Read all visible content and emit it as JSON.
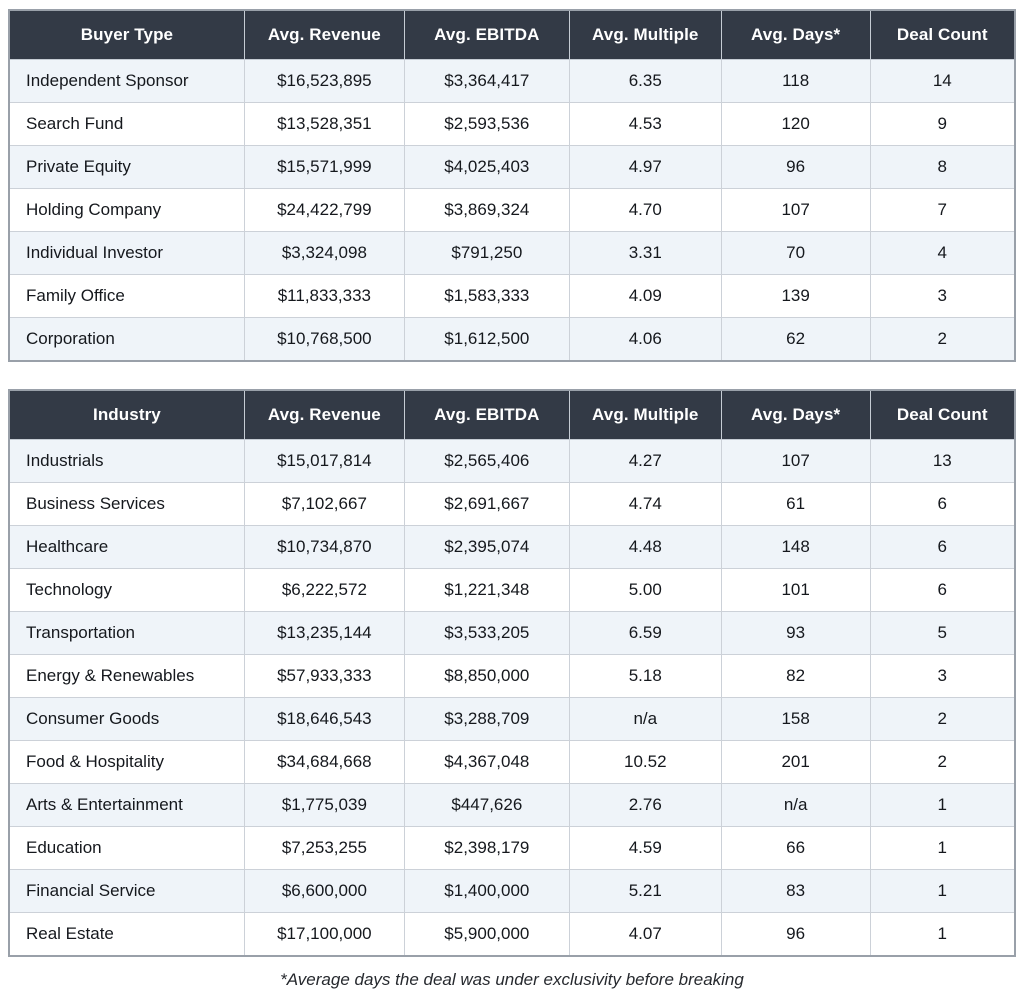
{
  "tables": [
    {
      "name": "buyer-type",
      "columns": [
        "Buyer Type",
        "Avg. Revenue",
        "Avg. EBITDA",
        "Avg. Multiple",
        "Avg. Days*",
        "Deal Count"
      ],
      "rows": [
        [
          "Independent Sponsor",
          "$16,523,895",
          "$3,364,417",
          "6.35",
          "118",
          "14"
        ],
        [
          "Search Fund",
          "$13,528,351",
          "$2,593,536",
          "4.53",
          "120",
          "9"
        ],
        [
          "Private Equity",
          "$15,571,999",
          "$4,025,403",
          "4.97",
          "96",
          "8"
        ],
        [
          "Holding Company",
          "$24,422,799",
          "$3,869,324",
          "4.70",
          "107",
          "7"
        ],
        [
          "Individual Investor",
          "$3,324,098",
          "$791,250",
          "3.31",
          "70",
          "4"
        ],
        [
          "Family Office",
          "$11,833,333",
          "$1,583,333",
          "4.09",
          "139",
          "3"
        ],
        [
          "Corporation",
          "$10,768,500",
          "$1,612,500",
          "4.06",
          "62",
          "2"
        ]
      ]
    },
    {
      "name": "industry",
      "columns": [
        "Industry",
        "Avg. Revenue",
        "Avg. EBITDA",
        "Avg. Multiple",
        "Avg. Days*",
        "Deal Count"
      ],
      "rows": [
        [
          "Industrials",
          "$15,017,814",
          "$2,565,406",
          "4.27",
          "107",
          "13"
        ],
        [
          "Business Services",
          "$7,102,667",
          "$2,691,667",
          "4.74",
          "61",
          "6"
        ],
        [
          "Healthcare",
          "$10,734,870",
          "$2,395,074",
          "4.48",
          "148",
          "6"
        ],
        [
          "Technology",
          "$6,222,572",
          "$1,221,348",
          "5.00",
          "101",
          "6"
        ],
        [
          "Transportation",
          "$13,235,144",
          "$3,533,205",
          "6.59",
          "93",
          "5"
        ],
        [
          "Energy & Renewables",
          "$57,933,333",
          "$8,850,000",
          "5.18",
          "82",
          "3"
        ],
        [
          "Consumer Goods",
          "$18,646,543",
          "$3,288,709",
          "n/a",
          "158",
          "2"
        ],
        [
          "Food & Hospitality",
          "$34,684,668",
          "$4,367,048",
          "10.52",
          "201",
          "2"
        ],
        [
          "Arts & Entertainment",
          "$1,775,039",
          "$447,626",
          "2.76",
          "n/a",
          "1"
        ],
        [
          "Education",
          "$7,253,255",
          "$2,398,179",
          "4.59",
          "66",
          "1"
        ],
        [
          "Financial Service",
          "$6,600,000",
          "$1,400,000",
          "5.21",
          "83",
          "1"
        ],
        [
          "Real Estate",
          "$17,100,000",
          "$5,900,000",
          "4.07",
          "96",
          "1"
        ]
      ]
    }
  ],
  "footnote": "*Average days the deal was under exclusivity before breaking",
  "colors": {
    "header_bg": "#333a46",
    "header_text": "#ffffff",
    "row_alt_bg": "#eff4f9",
    "row_bg": "#ffffff",
    "inner_border": "#ccd1d8",
    "outer_border": "#99a0a9",
    "cell_text": "#15181d"
  }
}
